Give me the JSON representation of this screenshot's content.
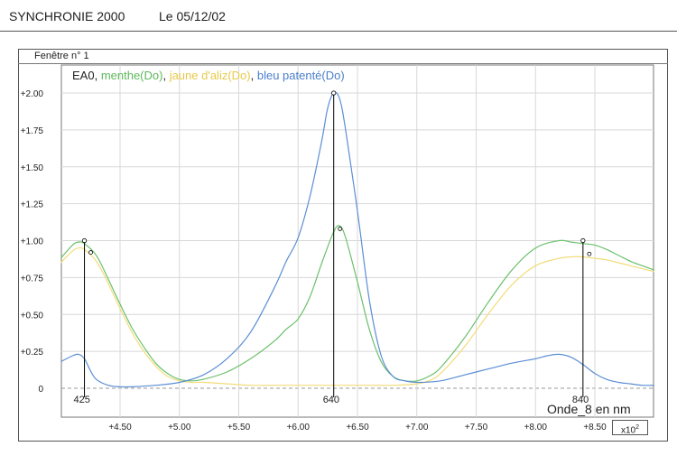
{
  "header": {
    "app": "SYNCHRONIE 2000",
    "date": "Le 05/12/02"
  },
  "window": {
    "title": "Fenêtre n° 1"
  },
  "chart_data": {
    "type": "line",
    "xlabel": "Onde_8 en nm",
    "x_multiplier": "x10",
    "x_multiplier_exp": "2",
    "xlim": [
      4.0,
      9.0
    ],
    "ylim": [
      0,
      2.2
    ],
    "xticks": [
      4.5,
      5.0,
      5.5,
      6.0,
      6.5,
      7.0,
      7.5,
      8.0,
      8.5
    ],
    "xtick_labels": [
      "+4.50",
      "+5.00",
      "+5.50",
      "+6.00",
      "+6.50",
      "+7.00",
      "+7.50",
      "+8.00",
      "+8.50"
    ],
    "yticks": [
      0,
      0.25,
      0.5,
      0.75,
      1.0,
      1.25,
      1.5,
      1.75,
      2.0
    ],
    "ytick_labels": [
      "0",
      "+0.25",
      "+0.50",
      "+0.75",
      "+1.00",
      "+1.25",
      "+1.50",
      "+1.75",
      "+2.00"
    ],
    "grid": true,
    "legend_prefix": "EA0",
    "legend_sep": ", ",
    "series": [
      {
        "name": "menthe(Do)",
        "color": "#6cc06c",
        "x": [
          4.0,
          4.1,
          4.15,
          4.2,
          4.3,
          4.4,
          4.5,
          4.6,
          4.7,
          4.8,
          4.9,
          5.0,
          5.1,
          5.2,
          5.4,
          5.6,
          5.8,
          5.9,
          6.0,
          6.1,
          6.2,
          6.3,
          6.35,
          6.4,
          6.5,
          6.6,
          6.7,
          6.8,
          6.9,
          7.0,
          7.1,
          7.2,
          7.4,
          7.6,
          7.8,
          8.0,
          8.2,
          8.3,
          8.4,
          8.5,
          8.6,
          8.7,
          8.8,
          8.9,
          9.0
        ],
        "y": [
          0.88,
          0.97,
          0.99,
          0.98,
          0.9,
          0.74,
          0.57,
          0.41,
          0.28,
          0.17,
          0.1,
          0.06,
          0.05,
          0.06,
          0.11,
          0.2,
          0.32,
          0.4,
          0.47,
          0.62,
          0.85,
          1.06,
          1.1,
          1.02,
          0.72,
          0.4,
          0.18,
          0.08,
          0.05,
          0.05,
          0.08,
          0.14,
          0.34,
          0.58,
          0.8,
          0.95,
          1.0,
          0.99,
          0.98,
          0.97,
          0.94,
          0.9,
          0.86,
          0.83,
          0.8
        ]
      },
      {
        "name": "jaune d'aliz(Do)",
        "color": "#f2dc7a",
        "x": [
          4.0,
          4.1,
          4.15,
          4.2,
          4.3,
          4.4,
          4.5,
          4.6,
          4.7,
          4.8,
          4.9,
          5.0,
          5.1,
          5.2,
          5.4,
          5.6,
          5.8,
          6.0,
          6.2,
          6.4,
          6.6,
          6.8,
          7.0,
          7.1,
          7.2,
          7.4,
          7.6,
          7.8,
          8.0,
          8.2,
          8.3,
          8.4,
          8.5,
          8.6,
          8.7,
          8.8,
          8.9,
          9.0
        ],
        "y": [
          0.85,
          0.93,
          0.95,
          0.94,
          0.86,
          0.71,
          0.54,
          0.38,
          0.25,
          0.15,
          0.08,
          0.05,
          0.04,
          0.04,
          0.03,
          0.02,
          0.02,
          0.02,
          0.02,
          0.02,
          0.02,
          0.02,
          0.03,
          0.05,
          0.1,
          0.28,
          0.5,
          0.7,
          0.83,
          0.88,
          0.89,
          0.89,
          0.88,
          0.87,
          0.85,
          0.83,
          0.81,
          0.79
        ]
      },
      {
        "name": "bleu patenté(Do)",
        "color": "#5c8ed4",
        "x": [
          4.0,
          4.1,
          4.15,
          4.2,
          4.25,
          4.3,
          4.4,
          4.5,
          4.6,
          4.8,
          5.0,
          5.2,
          5.4,
          5.6,
          5.8,
          5.9,
          6.0,
          6.1,
          6.2,
          6.25,
          6.3,
          6.35,
          6.4,
          6.5,
          6.6,
          6.7,
          6.8,
          6.9,
          7.0,
          7.2,
          7.4,
          7.6,
          7.8,
          8.0,
          8.1,
          8.2,
          8.3,
          8.4,
          8.5,
          8.6,
          8.7,
          8.8,
          8.9,
          9.0
        ],
        "y": [
          0.18,
          0.22,
          0.23,
          0.2,
          0.12,
          0.06,
          0.02,
          0.01,
          0.01,
          0.02,
          0.04,
          0.09,
          0.2,
          0.38,
          0.68,
          0.86,
          1.02,
          1.3,
          1.68,
          1.9,
          2.0,
          1.96,
          1.75,
          1.2,
          0.6,
          0.22,
          0.08,
          0.05,
          0.04,
          0.05,
          0.09,
          0.13,
          0.17,
          0.2,
          0.22,
          0.23,
          0.21,
          0.16,
          0.1,
          0.06,
          0.04,
          0.03,
          0.02,
          0.02
        ]
      }
    ],
    "markers": [
      {
        "label": "425",
        "x": 4.2,
        "y": 1.0
      },
      {
        "label": "640",
        "x": 6.3,
        "y": 2.0
      },
      {
        "label": "840",
        "x": 8.4,
        "y": 1.0
      }
    ],
    "annotation_y": [
      0.92,
      1.08,
      0.91
    ]
  }
}
